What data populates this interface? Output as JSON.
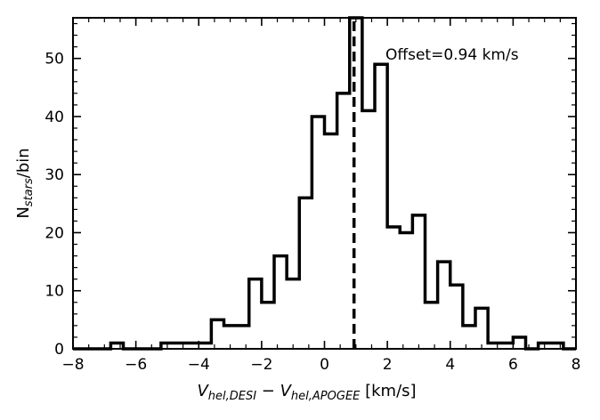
{
  "chart_data": {
    "type": "histogram",
    "bin_width": 0.4,
    "bins": [
      {
        "x0": -8.0,
        "count": 0
      },
      {
        "x0": -7.6,
        "count": 0
      },
      {
        "x0": -7.2,
        "count": 0
      },
      {
        "x0": -6.8,
        "count": 1
      },
      {
        "x0": -6.4,
        "count": 0
      },
      {
        "x0": -6.0,
        "count": 0
      },
      {
        "x0": -5.6,
        "count": 0
      },
      {
        "x0": -5.2,
        "count": 1
      },
      {
        "x0": -4.8,
        "count": 1
      },
      {
        "x0": -4.4,
        "count": 1
      },
      {
        "x0": -4.0,
        "count": 1
      },
      {
        "x0": -3.6,
        "count": 5
      },
      {
        "x0": -3.2,
        "count": 4
      },
      {
        "x0": -2.8,
        "count": 4
      },
      {
        "x0": -2.4,
        "count": 12
      },
      {
        "x0": -2.0,
        "count": 8
      },
      {
        "x0": -1.6,
        "count": 16
      },
      {
        "x0": -1.2,
        "count": 12
      },
      {
        "x0": -0.8,
        "count": 26
      },
      {
        "x0": -0.4,
        "count": 40
      },
      {
        "x0": 0.0,
        "count": 37
      },
      {
        "x0": 0.4,
        "count": 44
      },
      {
        "x0": 0.8,
        "count": 59
      },
      {
        "x0": 1.2,
        "count": 41
      },
      {
        "x0": 1.6,
        "count": 49
      },
      {
        "x0": 2.0,
        "count": 21
      },
      {
        "x0": 2.4,
        "count": 20
      },
      {
        "x0": 2.8,
        "count": 23
      },
      {
        "x0": 3.2,
        "count": 8
      },
      {
        "x0": 3.6,
        "count": 15
      },
      {
        "x0": 4.0,
        "count": 11
      },
      {
        "x0": 4.4,
        "count": 4
      },
      {
        "x0": 4.8,
        "count": 7
      },
      {
        "x0": 5.2,
        "count": 1
      },
      {
        "x0": 5.6,
        "count": 1
      },
      {
        "x0": 6.0,
        "count": 2
      },
      {
        "x0": 6.4,
        "count": 0
      },
      {
        "x0": 6.8,
        "count": 1
      },
      {
        "x0": 7.2,
        "count": 1
      },
      {
        "x0": 7.6,
        "count": 0
      }
    ],
    "offset": 0.94,
    "annotation": "Offset=0.94 km/s",
    "xlabel": {
      "main1": "V",
      "sub1": "hel,DESI",
      "mid": " − ",
      "main2": "V",
      "sub2": "hel,APOGEE",
      "tail": " [km/s]"
    },
    "ylabel": {
      "main": "N",
      "sub": "stars",
      "tail": "/bin"
    },
    "xlim": [
      -8,
      8
    ],
    "ylim": [
      0,
      57
    ],
    "xticks": [
      -8,
      -6,
      -4,
      -2,
      0,
      2,
      4,
      6,
      8
    ],
    "yticks": [
      0,
      10,
      20,
      30,
      40,
      50
    ],
    "grid": false
  }
}
